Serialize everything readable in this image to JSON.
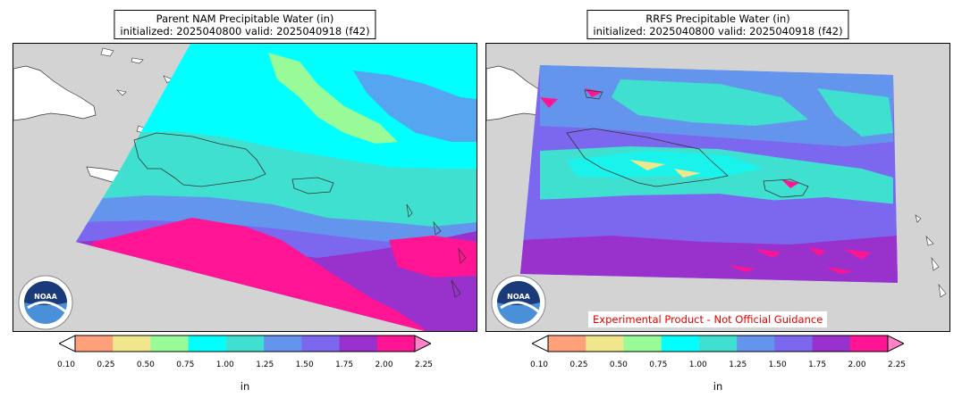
{
  "panels": [
    {
      "title_line1": "Parent NAM Precipitable Water (in)",
      "title_line2": "initialized: 2025040800 valid: 2025040918 (f42)",
      "logo": "noaa-logo",
      "disclaimer": ""
    },
    {
      "title_line1": "RRFS Precipitable Water (in)",
      "title_line2": "initialized: 2025040800 valid: 2025040918 (f42)",
      "logo": "noaa-logo",
      "disclaimer": "Experimental Product - Not Official Guidance"
    }
  ],
  "colorbar": {
    "units": "in",
    "ticks": [
      "0.10",
      "0.25",
      "0.50",
      "0.75",
      "1.00",
      "1.25",
      "1.50",
      "1.75",
      "2.00",
      "2.25"
    ],
    "colors": [
      "#ffa07a",
      "#f0e68c",
      "#98fb98",
      "#00ffff",
      "#40e0d0",
      "#6495ed",
      "#7b68ee",
      "#9932cc",
      "#ff1493"
    ],
    "under_color": "#ffffff",
    "over_color": "#ff82c8"
  },
  "map": {
    "land_color": "#ffffff",
    "missing_color": "#d3d3d3"
  }
}
